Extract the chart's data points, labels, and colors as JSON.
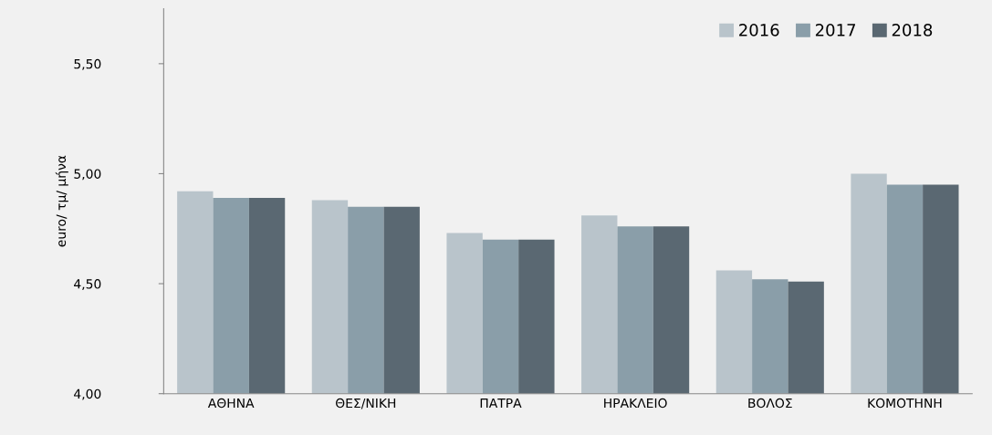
{
  "chart_data": {
    "type": "bar",
    "ylabel": "euro/ τμ/ μήνα",
    "categories": [
      "ΑΘΗΝΑ",
      "ΘΕΣ/ΝΙΚΗ",
      "ΠΑΤΡΑ",
      "ΗΡΑΚΛΕΙΟ",
      "ΒΟΛΟΣ",
      "ΚΟΜΟΤΗΝΗ"
    ],
    "series": [
      {
        "name": "2016",
        "color": "#b9c4cb",
        "values": [
          4.92,
          4.88,
          4.73,
          4.81,
          4.56,
          5.0
        ]
      },
      {
        "name": "2017",
        "color": "#8a9ea9",
        "values": [
          4.89,
          4.85,
          4.7,
          4.76,
          4.52,
          4.95
        ]
      },
      {
        "name": "2018",
        "color": "#5a6872",
        "values": [
          4.89,
          4.85,
          4.7,
          4.76,
          4.51,
          4.95
        ]
      }
    ],
    "ylim": [
      4.0,
      5.75
    ],
    "yticks": [
      {
        "value": 4.0,
        "label": "4,00"
      },
      {
        "value": 4.5,
        "label": "4,50"
      },
      {
        "value": 5.0,
        "label": "5,00"
      },
      {
        "value": 5.5,
        "label": "5,50"
      }
    ],
    "grid": false,
    "legend": "top right"
  }
}
